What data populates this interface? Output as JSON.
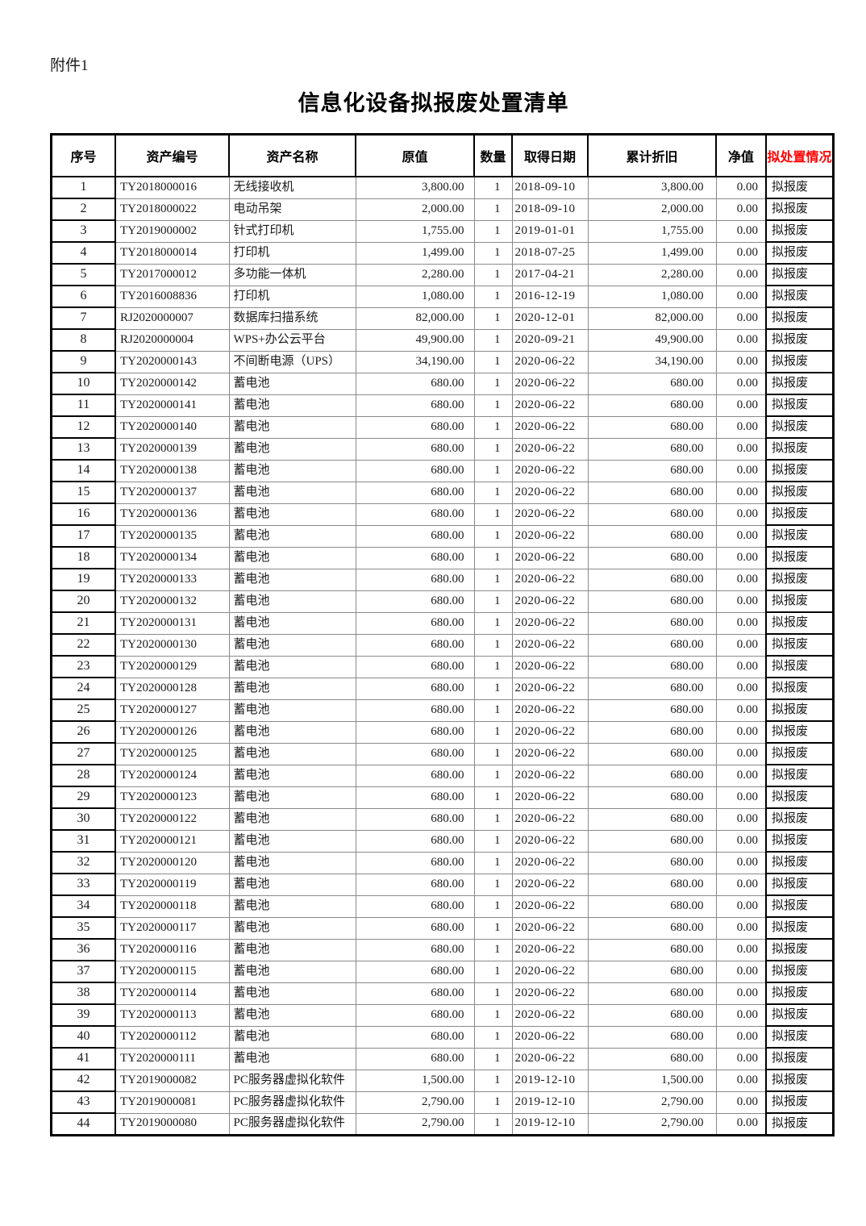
{
  "page": {
    "attachment_label": "附件1",
    "title": "信息化设备拟报废处置清单"
  },
  "colors": {
    "disposal_header_text": "#FF0000"
  },
  "table": {
    "columns": [
      {
        "key": "index",
        "label": "序号"
      },
      {
        "key": "asset-no",
        "label": "资产编号"
      },
      {
        "key": "asset-name",
        "label": "资产名称"
      },
      {
        "key": "original-value",
        "label": "原值"
      },
      {
        "key": "quantity",
        "label": "数量"
      },
      {
        "key": "acquire-date",
        "label": "取得日期"
      },
      {
        "key": "accumulated-depreciation",
        "label": "累计折旧"
      },
      {
        "key": "net-value",
        "label": "净值"
      },
      {
        "key": "disposal-status",
        "label": "拟处置情况"
      }
    ],
    "rows": [
      [
        "1",
        "TY2018000016",
        "无线接收机",
        "3,800.00",
        "1",
        "2018-09-10",
        "3,800.00",
        "0.00",
        "拟报废"
      ],
      [
        "2",
        "TY2018000022",
        "电动吊架",
        "2,000.00",
        "1",
        "2018-09-10",
        "2,000.00",
        "0.00",
        "拟报废"
      ],
      [
        "3",
        "TY2019000002",
        "针式打印机",
        "1,755.00",
        "1",
        "2019-01-01",
        "1,755.00",
        "0.00",
        "拟报废"
      ],
      [
        "4",
        "TY2018000014",
        "打印机",
        "1,499.00",
        "1",
        "2018-07-25",
        "1,499.00",
        "0.00",
        "拟报废"
      ],
      [
        "5",
        "TY2017000012",
        "多功能一体机",
        "2,280.00",
        "1",
        "2017-04-21",
        "2,280.00",
        "0.00",
        "拟报废"
      ],
      [
        "6",
        "TY2016008836",
        "打印机",
        "1,080.00",
        "1",
        "2016-12-19",
        "1,080.00",
        "0.00",
        "拟报废"
      ],
      [
        "7",
        "RJ2020000007",
        "数据库扫描系统",
        "82,000.00",
        "1",
        "2020-12-01",
        "82,000.00",
        "0.00",
        "拟报废"
      ],
      [
        "8",
        "RJ2020000004",
        "WPS+办公云平台",
        "49,900.00",
        "1",
        "2020-09-21",
        "49,900.00",
        "0.00",
        "拟报废"
      ],
      [
        "9",
        "TY2020000143",
        "不间断电源（UPS）",
        "34,190.00",
        "1",
        "2020-06-22",
        "34,190.00",
        "0.00",
        "拟报废"
      ],
      [
        "10",
        "TY2020000142",
        "蓄电池",
        "680.00",
        "1",
        "2020-06-22",
        "680.00",
        "0.00",
        "拟报废"
      ],
      [
        "11",
        "TY2020000141",
        "蓄电池",
        "680.00",
        "1",
        "2020-06-22",
        "680.00",
        "0.00",
        "拟报废"
      ],
      [
        "12",
        "TY2020000140",
        "蓄电池",
        "680.00",
        "1",
        "2020-06-22",
        "680.00",
        "0.00",
        "拟报废"
      ],
      [
        "13",
        "TY2020000139",
        "蓄电池",
        "680.00",
        "1",
        "2020-06-22",
        "680.00",
        "0.00",
        "拟报废"
      ],
      [
        "14",
        "TY2020000138",
        "蓄电池",
        "680.00",
        "1",
        "2020-06-22",
        "680.00",
        "0.00",
        "拟报废"
      ],
      [
        "15",
        "TY2020000137",
        "蓄电池",
        "680.00",
        "1",
        "2020-06-22",
        "680.00",
        "0.00",
        "拟报废"
      ],
      [
        "16",
        "TY2020000136",
        "蓄电池",
        "680.00",
        "1",
        "2020-06-22",
        "680.00",
        "0.00",
        "拟报废"
      ],
      [
        "17",
        "TY2020000135",
        "蓄电池",
        "680.00",
        "1",
        "2020-06-22",
        "680.00",
        "0.00",
        "拟报废"
      ],
      [
        "18",
        "TY2020000134",
        "蓄电池",
        "680.00",
        "1",
        "2020-06-22",
        "680.00",
        "0.00",
        "拟报废"
      ],
      [
        "19",
        "TY2020000133",
        "蓄电池",
        "680.00",
        "1",
        "2020-06-22",
        "680.00",
        "0.00",
        "拟报废"
      ],
      [
        "20",
        "TY2020000132",
        "蓄电池",
        "680.00",
        "1",
        "2020-06-22",
        "680.00",
        "0.00",
        "拟报废"
      ],
      [
        "21",
        "TY2020000131",
        "蓄电池",
        "680.00",
        "1",
        "2020-06-22",
        "680.00",
        "0.00",
        "拟报废"
      ],
      [
        "22",
        "TY2020000130",
        "蓄电池",
        "680.00",
        "1",
        "2020-06-22",
        "680.00",
        "0.00",
        "拟报废"
      ],
      [
        "23",
        "TY2020000129",
        "蓄电池",
        "680.00",
        "1",
        "2020-06-22",
        "680.00",
        "0.00",
        "拟报废"
      ],
      [
        "24",
        "TY2020000128",
        "蓄电池",
        "680.00",
        "1",
        "2020-06-22",
        "680.00",
        "0.00",
        "拟报废"
      ],
      [
        "25",
        "TY2020000127",
        "蓄电池",
        "680.00",
        "1",
        "2020-06-22",
        "680.00",
        "0.00",
        "拟报废"
      ],
      [
        "26",
        "TY2020000126",
        "蓄电池",
        "680.00",
        "1",
        "2020-06-22",
        "680.00",
        "0.00",
        "拟报废"
      ],
      [
        "27",
        "TY2020000125",
        "蓄电池",
        "680.00",
        "1",
        "2020-06-22",
        "680.00",
        "0.00",
        "拟报废"
      ],
      [
        "28",
        "TY2020000124",
        "蓄电池",
        "680.00",
        "1",
        "2020-06-22",
        "680.00",
        "0.00",
        "拟报废"
      ],
      [
        "29",
        "TY2020000123",
        "蓄电池",
        "680.00",
        "1",
        "2020-06-22",
        "680.00",
        "0.00",
        "拟报废"
      ],
      [
        "30",
        "TY2020000122",
        "蓄电池",
        "680.00",
        "1",
        "2020-06-22",
        "680.00",
        "0.00",
        "拟报废"
      ],
      [
        "31",
        "TY2020000121",
        "蓄电池",
        "680.00",
        "1",
        "2020-06-22",
        "680.00",
        "0.00",
        "拟报废"
      ],
      [
        "32",
        "TY2020000120",
        "蓄电池",
        "680.00",
        "1",
        "2020-06-22",
        "680.00",
        "0.00",
        "拟报废"
      ],
      [
        "33",
        "TY2020000119",
        "蓄电池",
        "680.00",
        "1",
        "2020-06-22",
        "680.00",
        "0.00",
        "拟报废"
      ],
      [
        "34",
        "TY2020000118",
        "蓄电池",
        "680.00",
        "1",
        "2020-06-22",
        "680.00",
        "0.00",
        "拟报废"
      ],
      [
        "35",
        "TY2020000117",
        "蓄电池",
        "680.00",
        "1",
        "2020-06-22",
        "680.00",
        "0.00",
        "拟报废"
      ],
      [
        "36",
        "TY2020000116",
        "蓄电池",
        "680.00",
        "1",
        "2020-06-22",
        "680.00",
        "0.00",
        "拟报废"
      ],
      [
        "37",
        "TY2020000115",
        "蓄电池",
        "680.00",
        "1",
        "2020-06-22",
        "680.00",
        "0.00",
        "拟报废"
      ],
      [
        "38",
        "TY2020000114",
        "蓄电池",
        "680.00",
        "1",
        "2020-06-22",
        "680.00",
        "0.00",
        "拟报废"
      ],
      [
        "39",
        "TY2020000113",
        "蓄电池",
        "680.00",
        "1",
        "2020-06-22",
        "680.00",
        "0.00",
        "拟报废"
      ],
      [
        "40",
        "TY2020000112",
        "蓄电池",
        "680.00",
        "1",
        "2020-06-22",
        "680.00",
        "0.00",
        "拟报废"
      ],
      [
        "41",
        "TY2020000111",
        "蓄电池",
        "680.00",
        "1",
        "2020-06-22",
        "680.00",
        "0.00",
        "拟报废"
      ],
      [
        "42",
        "TY2019000082",
        "PC服务器虚拟化软件",
        "1,500.00",
        "1",
        "2019-12-10",
        "1,500.00",
        "0.00",
        "拟报废"
      ],
      [
        "43",
        "TY2019000081",
        "PC服务器虚拟化软件",
        "2,790.00",
        "1",
        "2019-12-10",
        "2,790.00",
        "0.00",
        "拟报废"
      ],
      [
        "44",
        "TY2019000080",
        "PC服务器虚拟化软件",
        "2,790.00",
        "1",
        "2019-12-10",
        "2,790.00",
        "0.00",
        "拟报废"
      ]
    ]
  }
}
